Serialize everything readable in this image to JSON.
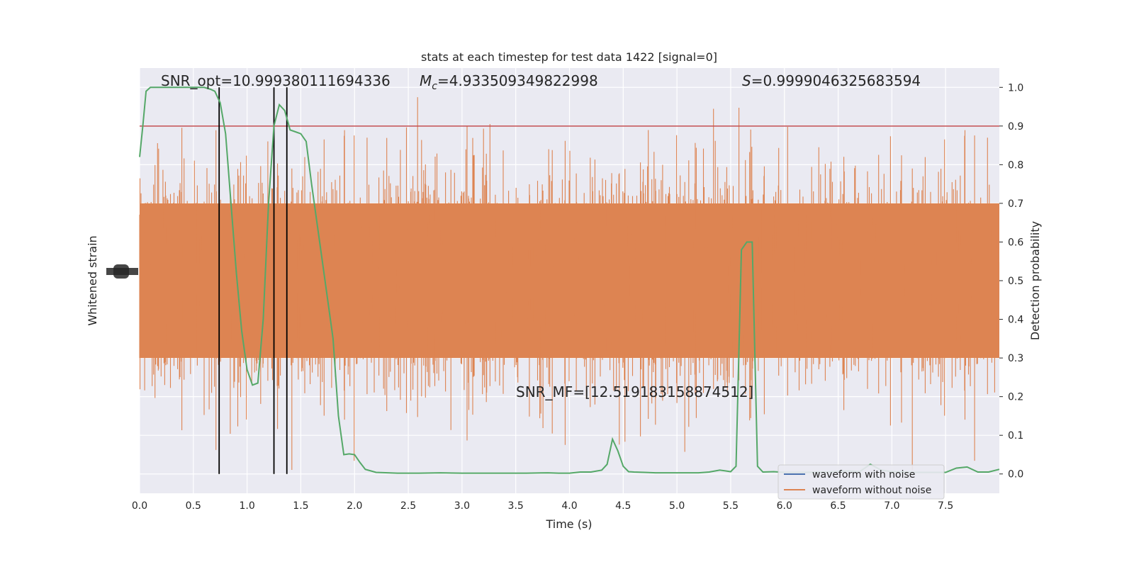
{
  "chart_data": {
    "type": "line",
    "title": "stats at each timestep for test data 1422 [signal=0]",
    "xlabel": "Time (s)",
    "ylabel_left": "Whitened strain",
    "ylabel_right": "Detection probability",
    "xlim": [
      0,
      8
    ],
    "ylim_right": [
      -0.05,
      1.05
    ],
    "x_ticks": [
      "0.0",
      "0.5",
      "1.0",
      "1.5",
      "2.0",
      "2.5",
      "3.0",
      "3.5",
      "4.0",
      "4.5",
      "5.0",
      "5.5",
      "6.0",
      "6.5",
      "7.0",
      "7.5"
    ],
    "y_ticks_right": [
      "0.0",
      "0.1",
      "0.2",
      "0.3",
      "0.4",
      "0.5",
      "0.6",
      "0.7",
      "0.8",
      "0.9",
      "1.0"
    ],
    "grid": true,
    "legend_position": "lower-right",
    "annotations": {
      "snr_opt": "SNR_opt=10.999380111694336",
      "mc_symbol": "M",
      "mc_sub": "c",
      "mc_value": "=4.933509349822998",
      "s_symbol": "S",
      "s_value": "=0.9999046325683594",
      "snr_mf": "SNR_MF=[12.519183158874512]"
    },
    "threshold": 0.9,
    "vertical_lines_x": [
      0.74,
      1.25,
      1.37
    ],
    "series": [
      {
        "name": "waveform with noise",
        "color": "#4c72b0",
        "values": []
      },
      {
        "name": "waveform without noise",
        "color": "#dd8452",
        "values": []
      },
      {
        "color": "#55a868",
        "x": [
          0.0,
          0.03,
          0.06,
          0.1,
          0.15,
          0.2,
          0.3,
          0.4,
          0.5,
          0.6,
          0.66,
          0.7,
          0.75,
          0.8,
          0.85,
          0.9,
          0.95,
          1.0,
          1.05,
          1.1,
          1.15,
          1.2,
          1.25,
          1.3,
          1.35,
          1.4,
          1.45,
          1.5,
          1.55,
          1.6,
          1.7,
          1.8,
          1.85,
          1.9,
          1.95,
          2.0,
          2.05,
          2.1,
          2.2,
          2.4,
          2.6,
          2.8,
          3.0,
          3.2,
          3.4,
          3.6,
          3.8,
          3.9,
          4.0,
          4.1,
          4.2,
          4.3,
          4.35,
          4.4,
          4.45,
          4.5,
          4.55,
          4.6,
          4.7,
          4.8,
          5.0,
          5.1,
          5.2,
          5.3,
          5.4,
          5.45,
          5.5,
          5.55,
          5.6,
          5.65,
          5.7,
          5.75,
          5.8,
          5.9,
          6.0,
          6.2,
          6.4,
          6.6,
          6.7,
          6.8,
          6.9,
          7.0,
          7.2,
          7.4,
          7.5,
          7.6,
          7.7,
          7.8,
          7.9,
          8.0
        ],
        "y": [
          0.82,
          0.9,
          0.99,
          1.0,
          1.0,
          1.0,
          1.0,
          1.0,
          1.0,
          1.0,
          0.995,
          0.99,
          0.96,
          0.88,
          0.7,
          0.52,
          0.37,
          0.27,
          0.23,
          0.235,
          0.4,
          0.7,
          0.9,
          0.955,
          0.94,
          0.89,
          0.885,
          0.88,
          0.86,
          0.75,
          0.55,
          0.35,
          0.15,
          0.05,
          0.052,
          0.05,
          0.03,
          0.012,
          0.004,
          0.002,
          0.002,
          0.003,
          0.002,
          0.002,
          0.002,
          0.002,
          0.003,
          0.002,
          0.002,
          0.005,
          0.005,
          0.01,
          0.025,
          0.09,
          0.06,
          0.02,
          0.006,
          0.005,
          0.004,
          0.003,
          0.003,
          0.003,
          0.003,
          0.005,
          0.01,
          0.008,
          0.006,
          0.02,
          0.58,
          0.6,
          0.6,
          0.02,
          0.005,
          0.006,
          0.004,
          0.004,
          0.005,
          0.008,
          0.006,
          0.025,
          0.01,
          0.006,
          0.004,
          0.004,
          0.004,
          0.015,
          0.018,
          0.005,
          0.005,
          0.012
        ]
      }
    ]
  }
}
